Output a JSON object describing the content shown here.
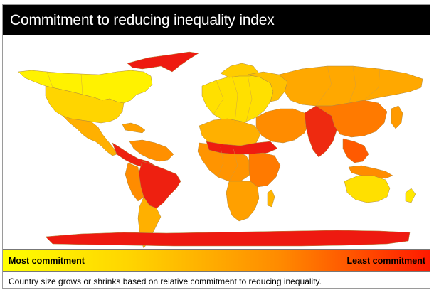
{
  "title": "Commitment to reducing inequality index",
  "legend": {
    "left_label": "Most commitment",
    "right_label": "Least commitment",
    "color_low": "#ffff00",
    "color_high": "#ff1a00"
  },
  "caption": "Country size grows or shrinks based on relative commitment to reducing inequality."
}
